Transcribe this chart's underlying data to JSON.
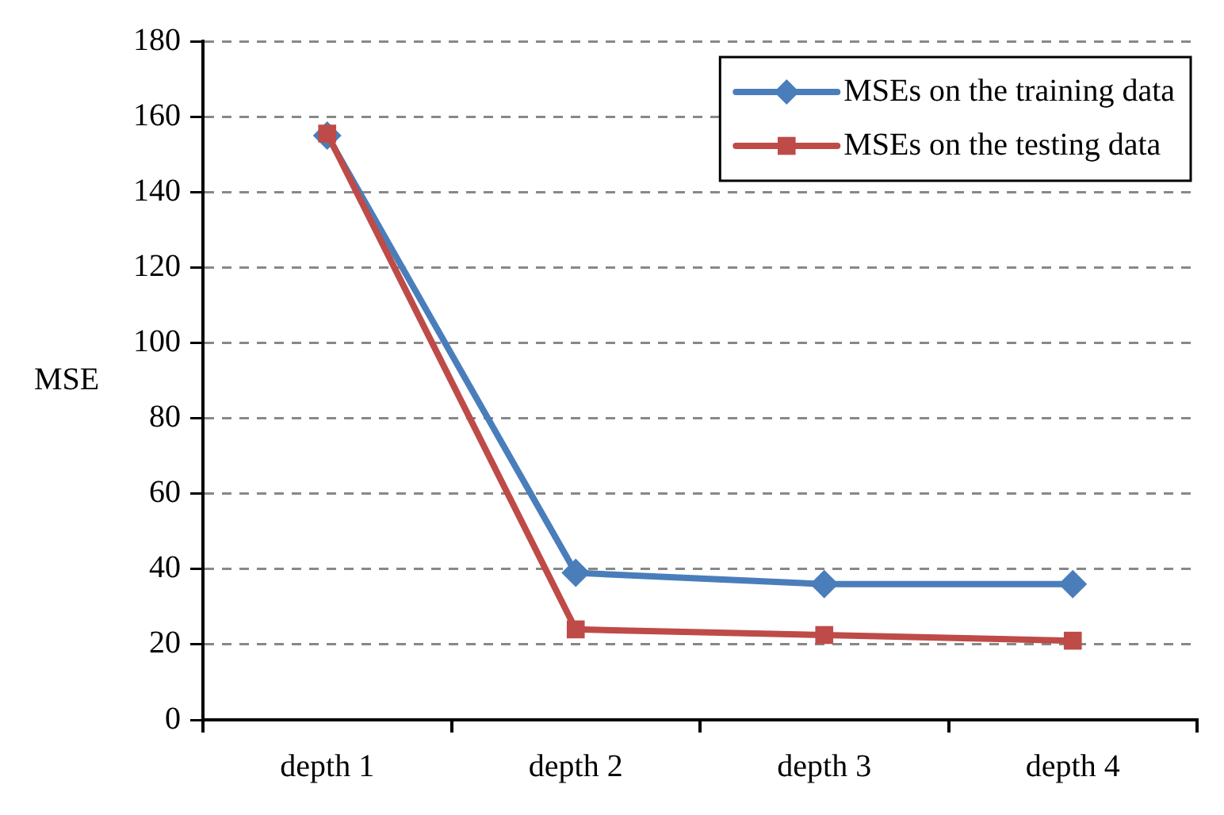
{
  "chart_data": {
    "type": "line",
    "ylabel": "MSE",
    "categories": [
      "depth 1",
      "depth 2",
      "depth 3",
      "depth 4"
    ],
    "series": [
      {
        "name": "MSEs on the training data",
        "color": "#4a7ebb",
        "values": [
          155,
          39,
          36,
          36
        ],
        "marker": "diamond"
      },
      {
        "name": "MSEs on the testing data",
        "color": "#be4b48",
        "values": [
          155.5,
          24,
          22.5,
          21
        ],
        "marker": "square"
      }
    ],
    "ylim": [
      0,
      180
    ],
    "yticks": [
      0,
      20,
      40,
      60,
      80,
      100,
      120,
      140,
      160,
      180
    ],
    "grid": "y",
    "legend": "top right"
  }
}
